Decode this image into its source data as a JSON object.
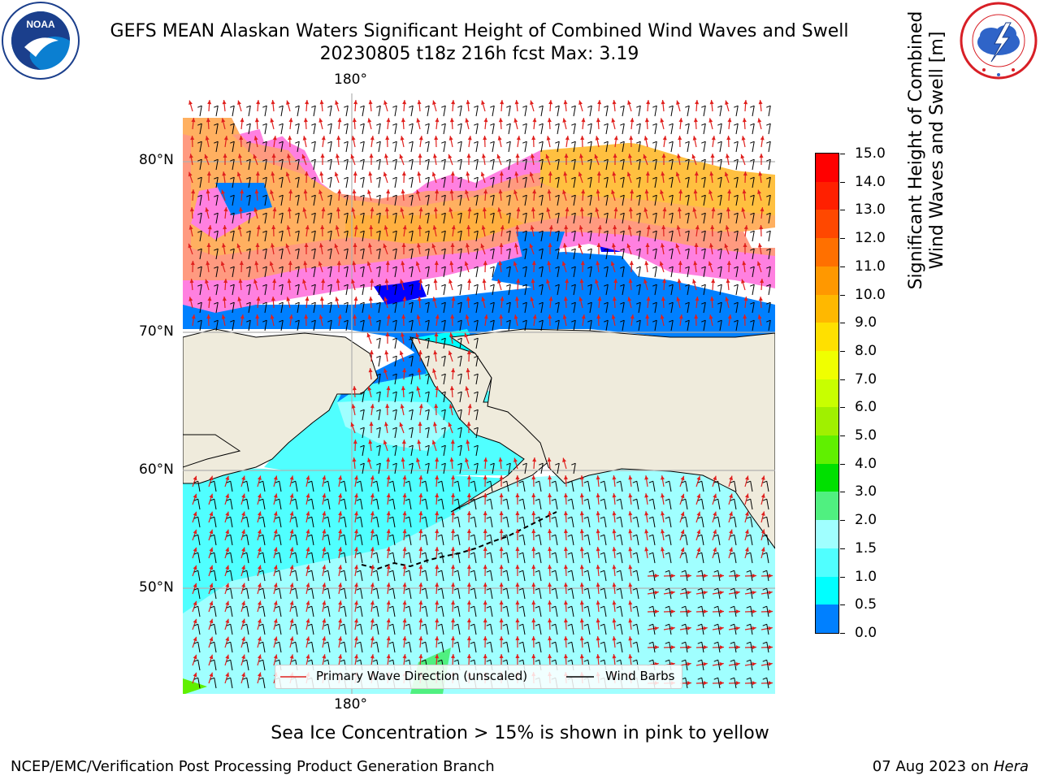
{
  "header": {
    "title_line1": "GEFS MEAN Alaskan Waters Significant Height of Combined Wind Waves and Swell",
    "title_line2": "20230805 t18z 216h fcst   Max: 3.19"
  },
  "map": {
    "lon_label_top": "180°",
    "lon_label_bottom": "180°",
    "lat_labels": [
      "80°N",
      "70°N",
      "60°N",
      "50°N"
    ],
    "legend": {
      "wave_direction": "Primary Wave Direction (unscaled)",
      "wind_barbs": "Wind Barbs"
    },
    "colors": {
      "land": "#efebdc",
      "wave_arrow": "#e0201e",
      "wind_barb": "#000000",
      "gridline": "#b0b0b0"
    }
  },
  "colorbar": {
    "title_line1": "Significant Height of Combined",
    "title_line2": "Wind Waves and Swell [m]",
    "ticks": [
      "15.0",
      "14.0",
      "13.0",
      "12.0",
      "11.0",
      "10.0",
      "9.0",
      "8.0",
      "7.0",
      "6.0",
      "5.0",
      "4.0",
      "3.0",
      "2.0",
      "1.5",
      "1.0",
      "0.5",
      "0.0"
    ],
    "colors": [
      "#ff0000",
      "#ff2000",
      "#ff4800",
      "#ff7000",
      "#ff9800",
      "#ffb800",
      "#ffe000",
      "#f0ff00",
      "#c8ff00",
      "#a0f000",
      "#60f000",
      "#00e000",
      "#50f080",
      "#a0ffff",
      "#50ffff",
      "#00ffff",
      "#0080ff",
      "#0000ff"
    ]
  },
  "note": "Sea Ice Concentration > 15% is shown in pink to yellow",
  "footer": {
    "left": "NCEP/EMC/Verification Post Processing Product Generation Branch",
    "right_prefix": "07 Aug 2023 on ",
    "right_italic": "Hera"
  },
  "logos": {
    "noaa_icon": "noaa-logo-icon",
    "nws_icon": "nws-logo-icon"
  }
}
